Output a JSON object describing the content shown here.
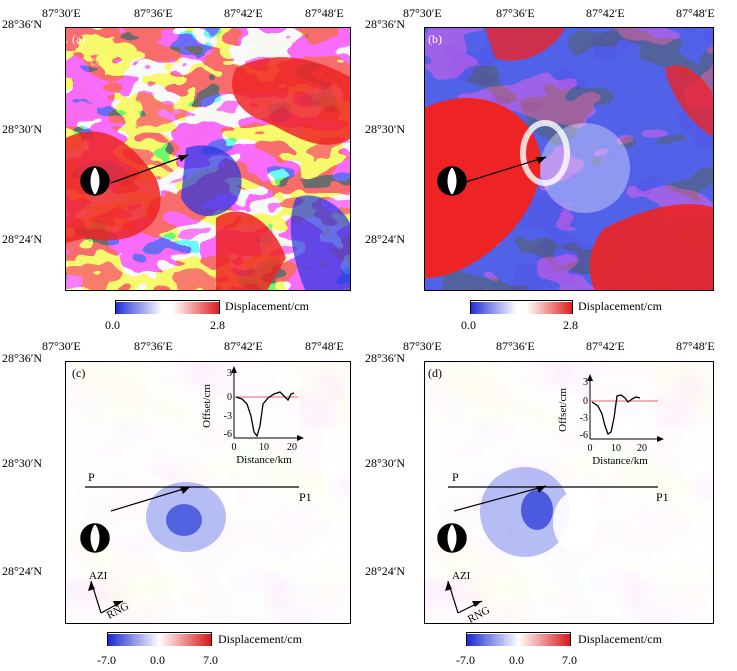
{
  "figure": {
    "lon_ticks": [
      "87°30′E",
      "87°36′E",
      "87°42′E",
      "87°48′E"
    ],
    "lat_ticks": [
      "28°36′N",
      "28°30′N",
      "28°24′N"
    ],
    "panels": [
      {
        "id": "a",
        "label": "(a)",
        "colorbar": {
          "title": "Displacement/cm",
          "min": "0.0",
          "max": "2.8"
        }
      },
      {
        "id": "b",
        "label": "(b)",
        "colorbar": {
          "title": "Displacement/cm",
          "min": "0.0",
          "max": "2.8"
        }
      },
      {
        "id": "c",
        "label": "(c)",
        "colorbar": {
          "title": "Displacement/cm",
          "min": "-7.0",
          "mid": "0.0",
          "max": "7.0"
        },
        "profile": {
          "start": "P",
          "end": "P1"
        },
        "azi": "AZI",
        "rng": "RNG",
        "inset": {
          "xlabel": "Distance/km",
          "ylabel": "Offset/cm",
          "xticks": [
            "0",
            "10",
            "20"
          ],
          "yticks": [
            "3",
            "0",
            "-3",
            "-6"
          ]
        }
      },
      {
        "id": "d",
        "label": "(d)",
        "colorbar": {
          "title": "Displacement/cm",
          "min": "-7.0",
          "mid": "0.0",
          "max": "7.0"
        },
        "profile": {
          "start": "P",
          "end": "P1"
        },
        "azi": "AZI",
        "rng": "RNG",
        "inset": {
          "xlabel": "Distance/km",
          "ylabel": "Offset/cm",
          "xticks": [
            "0",
            "10",
            "20"
          ],
          "yticks": [
            "3",
            "0",
            "-3",
            "-6"
          ]
        }
      }
    ]
  },
  "colors": {
    "red": "#ee2424",
    "blue": "#2535e0",
    "white": "#ffffff"
  }
}
